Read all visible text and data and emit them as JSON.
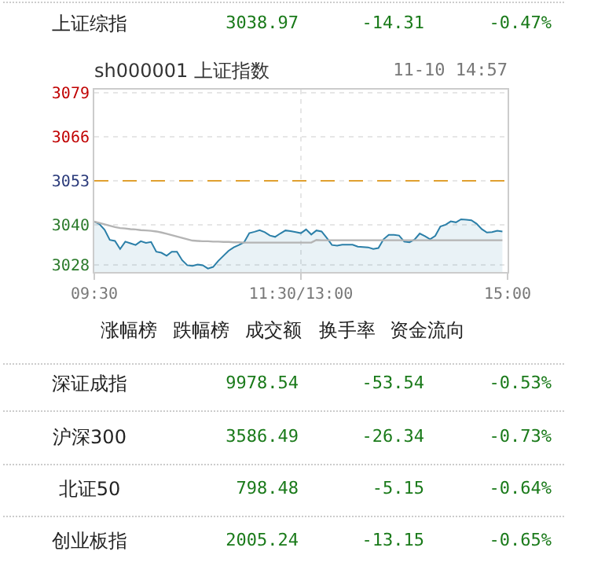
{
  "chart_data": {
    "type": "area",
    "title": "sh000001 上证指数",
    "subtitle": "11-10 14:57",
    "categories": [
      "09:30",
      null,
      null,
      null,
      null,
      null,
      null,
      null,
      null,
      null,
      null,
      null,
      null,
      null,
      null,
      null,
      null,
      null,
      null,
      null,
      null,
      null,
      null,
      null,
      null,
      null,
      null,
      null,
      null,
      null,
      null,
      null,
      null,
      null,
      null,
      null,
      null,
      null,
      null,
      null,
      "11:30/13:00",
      null,
      null,
      null,
      null,
      null,
      null,
      null,
      null,
      null,
      null,
      null,
      null,
      null,
      null,
      null,
      null,
      null,
      null,
      null,
      null,
      null,
      null,
      null,
      null,
      null,
      null,
      null,
      null,
      null,
      null,
      null,
      null,
      null,
      null,
      null,
      null,
      null,
      null,
      null,
      "15:00"
    ],
    "ylim": [
      3026,
      3080
    ],
    "yticks": [
      3028,
      3040,
      3053,
      3066,
      3079
    ],
    "grid": true,
    "ref_lines": [
      {
        "axis": "y",
        "value": 3053,
        "color": "#e0a030",
        "line_style": "dashed"
      }
    ],
    "series": [
      {
        "color": "#2b7fa8",
        "values": [
          3040.9,
          3040.2,
          3038.5,
          3035.5,
          3035.2,
          3032.8,
          3035.0,
          3034.5,
          3034.0,
          3035.1,
          3034.6,
          3034.9,
          3032.0,
          3031.7,
          3030.8,
          3032.0,
          3032.0,
          3029.5,
          3028.0,
          3027.8,
          3028.2,
          3028.0,
          3027.0,
          3027.5,
          3029.3,
          3030.8,
          3032.3,
          3033.3,
          3034.0,
          3034.8,
          3037.5,
          3037.9,
          3038.4,
          3037.8,
          3036.8,
          3036.4,
          3037.4,
          3038.3,
          3038.1,
          3037.8,
          3037.5,
          3038.6,
          3037.1,
          3038.3,
          3038.0,
          3036.1,
          3034.0,
          3033.8,
          3034.1,
          3034.1,
          3034.1,
          3033.5,
          3033.4,
          3033.3,
          3032.8,
          3033.1,
          3035.7,
          3037.0,
          3037.0,
          3036.8,
          3035.0,
          3034.8,
          3035.6,
          3037.4,
          3036.6,
          3035.7,
          3036.7,
          3039.5,
          3040.0,
          3041.0,
          3040.7,
          3041.6,
          3041.5,
          3041.3,
          3040.3,
          3038.7,
          3037.7,
          3037.8,
          3038.2,
          3038.0,
          null
        ]
      },
      {
        "type": "line",
        "color": "#b4b4b4",
        "values": [
          3040.9,
          3040.5,
          3040.1,
          3039.7,
          3039.3,
          3039.0,
          3038.9,
          3038.7,
          3038.6,
          3038.4,
          3038.3,
          3038.2,
          3038.0,
          3037.7,
          3037.3,
          3036.9,
          3036.5,
          3036.1,
          3035.7,
          3035.3,
          3035.2,
          3035.1,
          3035.1,
          3035.0,
          3035.0,
          3034.9,
          3034.9,
          3034.8,
          3034.8,
          3034.7,
          3034.7,
          3034.7,
          3034.7,
          3034.7,
          3034.7,
          3034.7,
          3034.7,
          3034.7,
          3034.7,
          3034.7,
          3034.7,
          3034.7,
          3034.7,
          3035.5,
          3035.4,
          3035.4,
          3035.4,
          3035.4,
          3035.4,
          3035.4,
          3035.4,
          3035.4,
          3035.4,
          3035.4,
          3035.4,
          3035.4,
          3035.4,
          3035.4,
          3035.4,
          3035.4,
          3035.4,
          3035.4,
          3035.4,
          3035.4,
          3035.4,
          3035.4,
          3035.4,
          3035.4,
          3035.4,
          3035.4,
          3035.4,
          3035.4,
          3035.4,
          3035.4,
          3035.4,
          3035.4,
          3035.4,
          3035.4,
          3035.4,
          3035.4,
          null
        ]
      }
    ],
    "annotations": [
      "上证综指",
      "3038.97",
      "-14.31",
      "-0.47%",
      "涨幅榜",
      "跌幅榜",
      "成交额",
      "换手率",
      "资金流向",
      "深证成指",
      "9978.54",
      "-53.54",
      "-0.53%",
      "沪深300",
      "3586.49",
      "-26.34",
      "-0.73%",
      "北证50",
      "798.48",
      "-5.15",
      "-0.64%",
      "创业板指",
      "2005.24",
      "-13.15",
      "-0.65%"
    ]
  }
}
